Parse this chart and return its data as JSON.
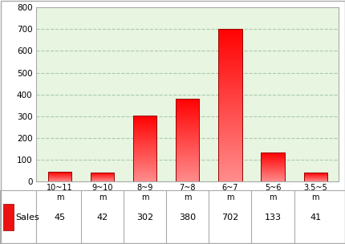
{
  "categories": [
    "10~11\nm",
    "9~10\nm",
    "8~9\nm",
    "7~8\nm",
    "6~7\nm",
    "5~6\nm",
    "3.5~5\nm"
  ],
  "values": [
    45,
    42,
    302,
    380,
    702,
    133,
    41
  ],
  "legend_values": [
    45,
    42,
    302,
    380,
    702,
    133,
    41
  ],
  "bar_color_top": "#ff0000",
  "bar_color_mid": "#ff4444",
  "bar_color_bottom": "#ffaaaa",
  "background_color": "#ffffff",
  "plot_bg_top": "#e8f5e0",
  "plot_bg_bottom": "#f5fff5",
  "grid_color": "#aaccaa",
  "border_color": "#aaaaaa",
  "ylim": [
    0,
    800
  ],
  "yticks": [
    0,
    100,
    200,
    300,
    400,
    500,
    600,
    700,
    800
  ],
  "legend_label": "Sales",
  "legend_color": "#ee1111"
}
